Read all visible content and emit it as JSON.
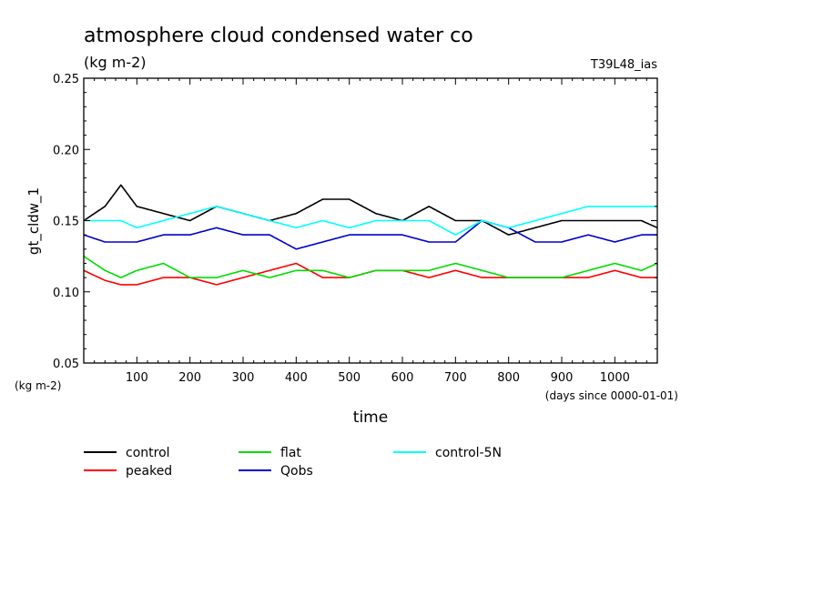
{
  "chart_data": {
    "type": "line",
    "title": "atmosphere cloud condensed water co",
    "subtitle": "(kg m-2)",
    "run_label": "T39L48_ias",
    "ylabel": "gt_cldw_1",
    "yunit_label": "(kg m-2)",
    "xlabel": "time",
    "xunit_label": "(days since 0000-01-01)",
    "xlim": [
      0,
      1080
    ],
    "ylim": [
      0.05,
      0.25
    ],
    "xticks": [
      100,
      200,
      300,
      400,
      500,
      600,
      700,
      800,
      900,
      1000
    ],
    "xtick_labels": [
      "100",
      "200",
      "300",
      "400",
      "500",
      "600",
      "700",
      "800",
      "900",
      "1000"
    ],
    "yticks": [
      0.05,
      0.1,
      0.15,
      0.2,
      0.25
    ],
    "ytick_labels": [
      "0.05",
      "0.10",
      "0.15",
      "0.20",
      "0.25"
    ],
    "grid": false,
    "legend_position": "bottom",
    "series": [
      {
        "name": "control",
        "color": "#000000",
        "x": [
          0,
          40,
          70,
          100,
          150,
          200,
          250,
          300,
          350,
          400,
          450,
          500,
          550,
          600,
          650,
          700,
          750,
          800,
          850,
          900,
          950,
          1000,
          1050,
          1080
        ],
        "y": [
          0.15,
          0.16,
          0.175,
          0.16,
          0.155,
          0.15,
          0.16,
          0.155,
          0.15,
          0.155,
          0.165,
          0.165,
          0.155,
          0.15,
          0.16,
          0.15,
          0.15,
          0.14,
          0.145,
          0.15,
          0.15,
          0.15,
          0.15,
          0.145
        ]
      },
      {
        "name": "peaked",
        "color": "#ff0000",
        "x": [
          0,
          40,
          70,
          100,
          150,
          200,
          250,
          300,
          350,
          400,
          450,
          500,
          550,
          600,
          650,
          700,
          750,
          800,
          850,
          900,
          950,
          1000,
          1050,
          1080
        ],
        "y": [
          0.115,
          0.108,
          0.105,
          0.105,
          0.11,
          0.11,
          0.105,
          0.11,
          0.115,
          0.12,
          0.11,
          0.11,
          0.115,
          0.115,
          0.11,
          0.115,
          0.11,
          0.11,
          0.11,
          0.11,
          0.11,
          0.115,
          0.11,
          0.11
        ]
      },
      {
        "name": "flat",
        "color": "#00dd00",
        "x": [
          0,
          40,
          70,
          100,
          150,
          200,
          250,
          300,
          350,
          400,
          450,
          500,
          550,
          600,
          650,
          700,
          750,
          800,
          850,
          900,
          950,
          1000,
          1050,
          1080
        ],
        "y": [
          0.125,
          0.115,
          0.11,
          0.115,
          0.12,
          0.11,
          0.11,
          0.115,
          0.11,
          0.115,
          0.115,
          0.11,
          0.115,
          0.115,
          0.115,
          0.12,
          0.115,
          0.11,
          0.11,
          0.11,
          0.115,
          0.12,
          0.115,
          0.12
        ]
      },
      {
        "name": "Qobs",
        "color": "#0000cc",
        "x": [
          0,
          40,
          70,
          100,
          150,
          200,
          250,
          300,
          350,
          400,
          450,
          500,
          550,
          600,
          650,
          700,
          750,
          800,
          850,
          900,
          950,
          1000,
          1050,
          1080
        ],
        "y": [
          0.14,
          0.135,
          0.135,
          0.135,
          0.14,
          0.14,
          0.145,
          0.14,
          0.14,
          0.13,
          0.135,
          0.14,
          0.14,
          0.14,
          0.135,
          0.135,
          0.15,
          0.145,
          0.135,
          0.135,
          0.14,
          0.135,
          0.14,
          0.14
        ]
      },
      {
        "name": "control-5N",
        "color": "#00ffff",
        "x": [
          0,
          40,
          70,
          100,
          150,
          200,
          250,
          300,
          350,
          400,
          450,
          500,
          550,
          600,
          650,
          700,
          750,
          800,
          850,
          900,
          950,
          1000,
          1050,
          1080
        ],
        "y": [
          0.15,
          0.15,
          0.15,
          0.145,
          0.15,
          0.155,
          0.16,
          0.155,
          0.15,
          0.145,
          0.15,
          0.145,
          0.15,
          0.15,
          0.15,
          0.14,
          0.15,
          0.145,
          0.15,
          0.155,
          0.16,
          0.16,
          0.16,
          0.16
        ]
      }
    ]
  }
}
